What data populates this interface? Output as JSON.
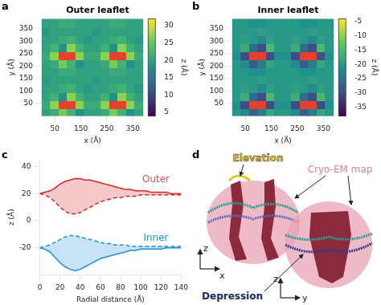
{
  "chart_data": [
    {
      "label": "a",
      "type": "heatmap",
      "title": "Outer leaflet",
      "x_label": "x (Å)",
      "y_label": "y (Å)",
      "xlim": [
        0,
        390
      ],
      "ylim": [
        0,
        390
      ],
      "xticks": [
        50,
        150,
        250,
        350
      ],
      "yticks": [
        50,
        100,
        150,
        200,
        250,
        300,
        350
      ],
      "cells": [
        [
          20,
          21,
          26,
          22,
          18,
          20,
          20,
          21,
          26,
          22,
          18,
          20
        ],
        [
          21,
          27,
          null,
          null,
          27,
          21,
          21,
          27,
          null,
          null,
          27,
          21
        ],
        [
          20,
          22,
          18,
          27,
          22,
          20,
          20,
          22,
          18,
          27,
          22,
          20
        ],
        [
          20,
          20,
          21,
          22,
          20,
          19,
          20,
          20,
          21,
          22,
          20,
          19
        ],
        [
          19,
          20,
          20,
          20,
          20,
          20,
          19,
          20,
          20,
          20,
          20,
          20
        ],
        [
          20,
          20,
          21,
          21,
          20,
          20,
          20,
          20,
          21,
          21,
          20,
          20
        ],
        [
          20,
          21,
          26,
          22,
          18,
          20,
          20,
          21,
          26,
          22,
          18,
          20
        ],
        [
          21,
          27,
          null,
          null,
          27,
          21,
          21,
          27,
          null,
          null,
          27,
          21
        ],
        [
          20,
          22,
          18,
          27,
          22,
          20,
          20,
          22,
          18,
          27,
          22,
          20
        ],
        [
          20,
          20,
          21,
          22,
          20,
          19,
          20,
          20,
          21,
          22,
          20,
          19
        ],
        [
          19,
          20,
          20,
          20,
          20,
          20,
          19,
          20,
          20,
          20,
          20,
          20
        ],
        [
          20,
          20,
          21,
          21,
          20,
          20,
          20,
          20,
          21,
          21,
          20,
          20
        ]
      ],
      "colorbar": {
        "label": "z (Å)",
        "range": [
          4,
          32
        ],
        "ticks": [
          5,
          10,
          15,
          20,
          25,
          30
        ]
      }
    },
    {
      "label": "b",
      "type": "heatmap",
      "title": "Inner leaflet",
      "x_label": "x (Å)",
      "y_label": "y (Å)",
      "xlim": [
        0,
        390
      ],
      "ylim": [
        0,
        390
      ],
      "xticks": [
        50,
        150,
        250,
        350
      ],
      "yticks": [
        50,
        100,
        150,
        200,
        250,
        300,
        350
      ],
      "cells": [
        [
          -20,
          -22,
          -28,
          -24,
          -18,
          -20,
          -20,
          -22,
          -28,
          -24,
          -18,
          -20
        ],
        [
          -21,
          -30,
          null,
          null,
          -30,
          -21,
          -21,
          -30,
          null,
          null,
          -30,
          -21
        ],
        [
          -20,
          -17,
          -26,
          -30,
          -15,
          -20,
          -20,
          -17,
          -26,
          -30,
          -15,
          -20
        ],
        [
          -20,
          -19,
          -20,
          -22,
          -19,
          -20,
          -20,
          -19,
          -20,
          -22,
          -19,
          -20
        ],
        [
          -20,
          -20,
          -20,
          -19,
          -20,
          -20,
          -20,
          -20,
          -20,
          -19,
          -20,
          -20
        ],
        [
          -20,
          -20,
          -21,
          -21,
          -20,
          -20,
          -20,
          -20,
          -21,
          -21,
          -20,
          -20
        ],
        [
          -20,
          -22,
          -28,
          -24,
          -18,
          -20,
          -20,
          -22,
          -28,
          -24,
          -18,
          -20
        ],
        [
          -21,
          -30,
          null,
          null,
          -30,
          -21,
          -21,
          -30,
          null,
          null,
          -30,
          -21
        ],
        [
          -20,
          -17,
          -26,
          -30,
          -15,
          -20,
          -20,
          -17,
          -26,
          -30,
          -15,
          -20
        ],
        [
          -20,
          -19,
          -20,
          -22,
          -19,
          -20,
          -20,
          -19,
          -20,
          -22,
          -19,
          -20
        ],
        [
          -20,
          -20,
          -20,
          -19,
          -20,
          -20,
          -20,
          -20,
          -20,
          -19,
          -20,
          -20
        ],
        [
          -20,
          -20,
          -21,
          -21,
          -20,
          -20,
          -20,
          -20,
          -21,
          -21,
          -20,
          -20
        ]
      ],
      "colorbar": {
        "label": "z (Å)",
        "range": [
          -38,
          -4
        ],
        "ticks": [
          -35,
          -30,
          -25,
          -20,
          -15,
          -10,
          -5
        ]
      }
    },
    {
      "label": "c",
      "type": "line",
      "x_label": "Radial distance (Å)",
      "y_label": "z (Å)",
      "xlim": [
        0,
        140
      ],
      "ylim": [
        -40,
        45
      ],
      "xticks": [
        0,
        20,
        40,
        60,
        80,
        100,
        120,
        140
      ],
      "yticks": [
        -20,
        0,
        20,
        40
      ],
      "x": [
        0,
        5,
        10,
        15,
        20,
        25,
        30,
        35,
        40,
        45,
        50,
        55,
        60,
        65,
        70,
        75,
        80,
        85,
        90,
        95,
        100,
        105,
        110,
        115,
        120,
        125,
        130,
        135,
        140
      ],
      "series": [
        {
          "color": "#d62728",
          "line_style": "solid",
          "values": [
            20,
            21,
            22,
            24,
            27,
            29,
            30,
            31,
            31,
            30,
            30,
            29,
            28,
            27,
            26,
            25,
            24,
            23,
            23,
            22,
            22,
            22,
            21,
            21,
            21,
            21,
            20,
            20,
            20
          ]
        },
        {
          "color": "#d62728",
          "line_style": "dashed",
          "values": [
            20,
            19,
            17,
            14,
            10,
            7,
            5,
            5,
            6,
            8,
            10,
            12,
            14,
            15,
            16,
            17,
            17,
            18,
            18,
            18,
            19,
            19,
            19,
            19,
            19,
            19,
            19,
            19,
            19
          ]
        },
        {
          "color": "#1e90d6",
          "line_style": "dashed",
          "values": [
            -20,
            -19,
            -18,
            -16,
            -14,
            -12,
            -11,
            -11,
            -12,
            -13,
            -14,
            -15,
            -16,
            -17,
            -17,
            -18,
            -18,
            -18,
            -19,
            -19,
            -19,
            -19,
            -19,
            -19,
            -19,
            -19,
            -19,
            -19,
            -19
          ]
        },
        {
          "color": "#1e90d6",
          "line_style": "solid",
          "values": [
            -20,
            -21,
            -23,
            -27,
            -31,
            -34,
            -36,
            -37,
            -36,
            -34,
            -32,
            -30,
            -28,
            -27,
            -26,
            -25,
            -24,
            -23,
            -22,
            -22,
            -21,
            -21,
            -21,
            -21,
            -21,
            -20,
            -20,
            -20,
            -20
          ]
        }
      ],
      "annotations": [
        {
          "text": "Outer",
          "x": 115,
          "y": 30,
          "color": "#d9534f"
        },
        {
          "text": "Inner",
          "x": 115,
          "y": -13,
          "color": "#1e90d6"
        }
      ]
    }
  ],
  "diagram": {
    "label": "d",
    "elevation": "Elevation",
    "cryo_em": "Cryo-EM map",
    "depression": "Depression",
    "axes": [
      [
        "z",
        "x"
      ],
      [
        "z",
        "y"
      ]
    ]
  }
}
